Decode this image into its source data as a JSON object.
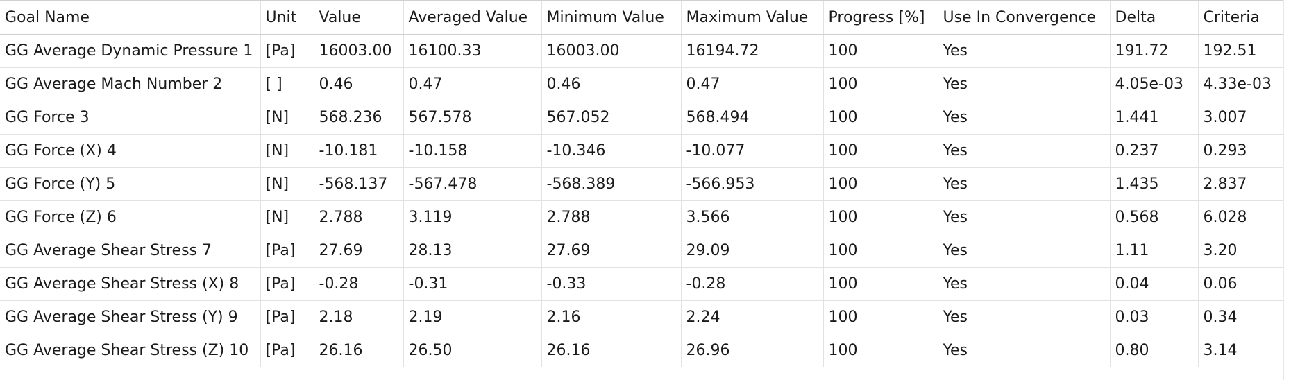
{
  "columns": [
    "Goal Name",
    "Unit",
    "Value",
    "Averaged Value",
    "Minimum Value",
    "Maximum Value",
    "Progress [%]",
    "Use In Convergence",
    "Delta",
    "Criteria"
  ],
  "rows": [
    [
      "GG Average Dynamic Pressure 1",
      "[Pa]",
      "16003.00",
      "16100.33",
      "16003.00",
      "16194.72",
      "100",
      "Yes",
      "191.72",
      "192.51"
    ],
    [
      "GG Average Mach Number 2",
      "[ ]",
      "0.46",
      "0.47",
      "0.46",
      "0.47",
      "100",
      "Yes",
      "4.05e-03",
      "4.33e-03"
    ],
    [
      "GG Force 3",
      "[N]",
      "568.236",
      "567.578",
      "567.052",
      "568.494",
      "100",
      "Yes",
      "1.441",
      "3.007"
    ],
    [
      "GG Force (X) 4",
      "[N]",
      "-10.181",
      "-10.158",
      "-10.346",
      "-10.077",
      "100",
      "Yes",
      "0.237",
      "0.293"
    ],
    [
      "GG Force (Y) 5",
      "[N]",
      "-568.137",
      "-567.478",
      "-568.389",
      "-566.953",
      "100",
      "Yes",
      "1.435",
      "2.837"
    ],
    [
      "GG Force (Z) 6",
      "[N]",
      "2.788",
      "3.119",
      "2.788",
      "3.566",
      "100",
      "Yes",
      "0.568",
      "6.028"
    ],
    [
      "GG Average Shear Stress 7",
      "[Pa]",
      "27.69",
      "28.13",
      "27.69",
      "29.09",
      "100",
      "Yes",
      "1.11",
      "3.20"
    ],
    [
      "GG Average Shear Stress (X) 8",
      "[Pa]",
      "-0.28",
      "-0.31",
      "-0.33",
      "-0.28",
      "100",
      "Yes",
      "0.04",
      "0.06"
    ],
    [
      "GG Average Shear Stress (Y) 9",
      "[Pa]",
      "2.18",
      "2.19",
      "2.16",
      "2.24",
      "100",
      "Yes",
      "0.03",
      "0.34"
    ],
    [
      "GG Average Shear Stress (Z) 10",
      "[Pa]",
      "26.16",
      "26.50",
      "26.16",
      "26.96",
      "100",
      "Yes",
      "0.80",
      "3.14"
    ]
  ]
}
